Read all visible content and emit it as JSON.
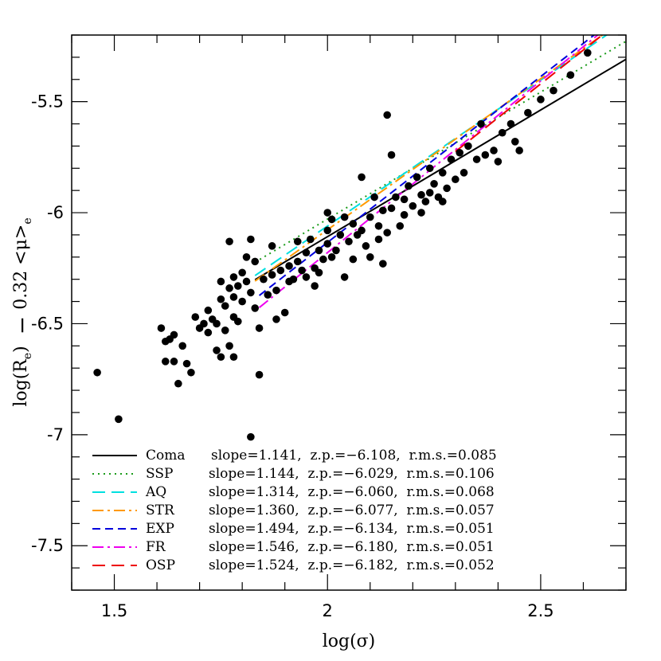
{
  "chart_data": {
    "type": "scatter",
    "title": "",
    "xlabel": "log(σ)",
    "ylabel": "log(Re) − 0.32 <μ>e",
    "ylabel_parts": {
      "a": "log(R",
      "b": "e",
      "c": ")  ",
      "d": "−",
      "e": "0.32 <μ>",
      "f": "e"
    },
    "xlim": [
      1.4,
      2.7
    ],
    "ylim": [
      -7.7,
      -5.2
    ],
    "xticks": [
      1.5,
      2,
      2.5
    ],
    "xtick_labels": [
      "1.5",
      "2",
      "2.5"
    ],
    "yticks": [
      -5.5,
      -6,
      -6.5,
      -7,
      -7.5
    ],
    "ytick_labels": [
      "-5.5",
      "-6",
      "-6.5",
      "-7",
      "-7.5"
    ],
    "grid": false,
    "legend_position": "bottom-right",
    "points": [
      {
        "x": 1.46,
        "y": -6.72
      },
      {
        "x": 1.51,
        "y": -6.93
      },
      {
        "x": 1.61,
        "y": -6.52
      },
      {
        "x": 1.62,
        "y": -6.58
      },
      {
        "x": 1.62,
        "y": -6.67
      },
      {
        "x": 1.63,
        "y": -6.57
      },
      {
        "x": 1.64,
        "y": -6.55
      },
      {
        "x": 1.64,
        "y": -6.67
      },
      {
        "x": 1.65,
        "y": -6.77
      },
      {
        "x": 1.66,
        "y": -6.6
      },
      {
        "x": 1.67,
        "y": -6.68
      },
      {
        "x": 1.68,
        "y": -6.72
      },
      {
        "x": 1.69,
        "y": -6.47
      },
      {
        "x": 1.7,
        "y": -6.52
      },
      {
        "x": 1.71,
        "y": -6.5
      },
      {
        "x": 1.72,
        "y": -6.54
      },
      {
        "x": 1.72,
        "y": -6.44
      },
      {
        "x": 1.73,
        "y": -6.48
      },
      {
        "x": 1.74,
        "y": -6.62
      },
      {
        "x": 1.74,
        "y": -6.5
      },
      {
        "x": 1.75,
        "y": -6.39
      },
      {
        "x": 1.75,
        "y": -6.65
      },
      {
        "x": 1.75,
        "y": -6.31
      },
      {
        "x": 1.76,
        "y": -6.42
      },
      {
        "x": 1.76,
        "y": -6.53
      },
      {
        "x": 1.77,
        "y": -6.13
      },
      {
        "x": 1.77,
        "y": -6.34
      },
      {
        "x": 1.77,
        "y": -6.6
      },
      {
        "x": 1.78,
        "y": -6.29
      },
      {
        "x": 1.78,
        "y": -6.38
      },
      {
        "x": 1.78,
        "y": -6.47
      },
      {
        "x": 1.78,
        "y": -6.65
      },
      {
        "x": 1.79,
        "y": -6.33
      },
      {
        "x": 1.79,
        "y": -6.49
      },
      {
        "x": 1.8,
        "y": -6.27
      },
      {
        "x": 1.8,
        "y": -6.4
      },
      {
        "x": 1.81,
        "y": -6.2
      },
      {
        "x": 1.81,
        "y": -6.31
      },
      {
        "x": 1.82,
        "y": -6.36
      },
      {
        "x": 1.82,
        "y": -6.12
      },
      {
        "x": 1.83,
        "y": -6.22
      },
      {
        "x": 1.83,
        "y": -6.43
      },
      {
        "x": 1.84,
        "y": -6.52
      },
      {
        "x": 1.84,
        "y": -6.73
      },
      {
        "x": 1.85,
        "y": -6.3
      },
      {
        "x": 1.86,
        "y": -6.37
      },
      {
        "x": 1.87,
        "y": -6.15
      },
      {
        "x": 1.87,
        "y": -6.28
      },
      {
        "x": 1.88,
        "y": -6.35
      },
      {
        "x": 1.89,
        "y": -6.26
      },
      {
        "x": 1.9,
        "y": -6.45
      },
      {
        "x": 1.91,
        "y": -6.31
      },
      {
        "x": 1.91,
        "y": -6.24
      },
      {
        "x": 1.92,
        "y": -6.3
      },
      {
        "x": 1.93,
        "y": -6.22
      },
      {
        "x": 1.93,
        "y": -6.13
      },
      {
        "x": 1.94,
        "y": -6.26
      },
      {
        "x": 1.95,
        "y": -6.18
      },
      {
        "x": 1.95,
        "y": -6.29
      },
      {
        "x": 1.96,
        "y": -6.12
      },
      {
        "x": 1.97,
        "y": -6.25
      },
      {
        "x": 1.97,
        "y": -6.33
      },
      {
        "x": 1.98,
        "y": -6.17
      },
      {
        "x": 1.98,
        "y": -6.27
      },
      {
        "x": 1.99,
        "y": -6.21
      },
      {
        "x": 2.0,
        "y": -6.14
      },
      {
        "x": 2.0,
        "y": -6.08
      },
      {
        "x": 2.01,
        "y": -6.2
      },
      {
        "x": 2.01,
        "y": -6.03
      },
      {
        "x": 2.02,
        "y": -6.17
      },
      {
        "x": 2.03,
        "y": -6.1
      },
      {
        "x": 2.04,
        "y": -6.29
      },
      {
        "x": 2.04,
        "y": -6.02
      },
      {
        "x": 2.05,
        "y": -6.13
      },
      {
        "x": 2.06,
        "y": -6.05
      },
      {
        "x": 2.07,
        "y": -6.1
      },
      {
        "x": 2.08,
        "y": -5.84
      },
      {
        "x": 2.08,
        "y": -6.08
      },
      {
        "x": 2.09,
        "y": -6.15
      },
      {
        "x": 2.1,
        "y": -6.02
      },
      {
        "x": 2.1,
        "y": -6.2
      },
      {
        "x": 2.11,
        "y": -5.93
      },
      {
        "x": 2.12,
        "y": -6.06
      },
      {
        "x": 2.12,
        "y": -6.12
      },
      {
        "x": 2.13,
        "y": -5.99
      },
      {
        "x": 2.14,
        "y": -5.56
      },
      {
        "x": 2.14,
        "y": -6.09
      },
      {
        "x": 2.15,
        "y": -5.74
      },
      {
        "x": 2.15,
        "y": -5.98
      },
      {
        "x": 2.16,
        "y": -5.93
      },
      {
        "x": 2.17,
        "y": -6.06
      },
      {
        "x": 2.18,
        "y": -5.94
      },
      {
        "x": 2.19,
        "y": -5.88
      },
      {
        "x": 2.2,
        "y": -5.97
      },
      {
        "x": 2.21,
        "y": -5.84
      },
      {
        "x": 2.22,
        "y": -5.92
      },
      {
        "x": 2.23,
        "y": -5.95
      },
      {
        "x": 2.24,
        "y": -5.8
      },
      {
        "x": 2.25,
        "y": -5.87
      },
      {
        "x": 2.26,
        "y": -5.93
      },
      {
        "x": 2.27,
        "y": -5.82
      },
      {
        "x": 2.28,
        "y": -5.89
      },
      {
        "x": 2.29,
        "y": -5.76
      },
      {
        "x": 2.3,
        "y": -5.85
      },
      {
        "x": 2.31,
        "y": -5.73
      },
      {
        "x": 2.32,
        "y": -5.82
      },
      {
        "x": 2.33,
        "y": -5.7
      },
      {
        "x": 2.35,
        "y": -5.76
      },
      {
        "x": 2.36,
        "y": -5.6
      },
      {
        "x": 2.37,
        "y": -5.74
      },
      {
        "x": 2.39,
        "y": -5.72
      },
      {
        "x": 2.4,
        "y": -5.77
      },
      {
        "x": 2.41,
        "y": -5.64
      },
      {
        "x": 2.43,
        "y": -5.6
      },
      {
        "x": 2.44,
        "y": -5.68
      },
      {
        "x": 2.45,
        "y": -5.72
      },
      {
        "x": 2.47,
        "y": -5.55
      },
      {
        "x": 2.5,
        "y": -5.49
      },
      {
        "x": 2.53,
        "y": -5.45
      },
      {
        "x": 2.57,
        "y": -5.38
      },
      {
        "x": 2.61,
        "y": -5.28
      },
      {
        "x": 1.82,
        "y": -7.01
      },
      {
        "x": 1.88,
        "y": -6.48
      },
      {
        "x": 2.0,
        "y": -6.0
      },
      {
        "x": 2.06,
        "y": -6.21
      },
      {
        "x": 2.13,
        "y": -6.23
      },
      {
        "x": 2.18,
        "y": -6.01
      },
      {
        "x": 2.22,
        "y": -6.0
      },
      {
        "x": 2.24,
        "y": -5.91
      },
      {
        "x": 2.27,
        "y": -5.95
      }
    ],
    "series": [
      {
        "name": "Coma",
        "label": "slope=1.141,  z.p.=−6.108,  r.m.s.=0.085",
        "slope": 1.141,
        "zp": -6.108,
        "x_range": [
          1.83,
          2.7
        ],
        "color": "#000000",
        "dash": "solid"
      },
      {
        "name": "SSP",
        "label": "slope=1.144,  z.p.=−6.029,  r.m.s.=0.106",
        "slope": 1.144,
        "zp": -6.029,
        "x_range": [
          1.83,
          2.7
        ],
        "color": "#1a9b1a",
        "dash": "dotted"
      },
      {
        "name": "AQ",
        "label": "slope=1.314,  z.p.=−6.060,  r.m.s.=0.068",
        "slope": 1.314,
        "zp": -6.06,
        "x_range": [
          1.83,
          2.7
        ],
        "color": "#00e0e0",
        "dash": "longdash"
      },
      {
        "name": "STR",
        "label": "slope=1.360,  z.p.=−6.077,  r.m.s.=0.057",
        "slope": 1.36,
        "zp": -6.077,
        "x_range": [
          1.83,
          2.7
        ],
        "color": "#ff9900",
        "dash": "dashdot"
      },
      {
        "name": "EXP",
        "label": "slope=1.494,  z.p.=−6.134,  r.m.s.=0.051",
        "slope": 1.494,
        "zp": -6.134,
        "x_range": [
          1.84,
          2.7
        ],
        "color": "#0000dd",
        "dash": "dashed"
      },
      {
        "name": "FR",
        "label": "slope=1.546,  z.p.=−6.180,  r.m.s.=0.051",
        "slope": 1.546,
        "zp": -6.18,
        "x_range": [
          1.84,
          2.7
        ],
        "color": "#ee00ee",
        "dash": "dashdot"
      },
      {
        "name": "OSP",
        "label": "slope=1.524,  z.p.=−6.182,  r.m.s.=0.052",
        "slope": 1.524,
        "zp": -6.182,
        "x_range": [
          2.3,
          2.7
        ],
        "color": "#ee0000",
        "dash": "longdash"
      }
    ]
  }
}
